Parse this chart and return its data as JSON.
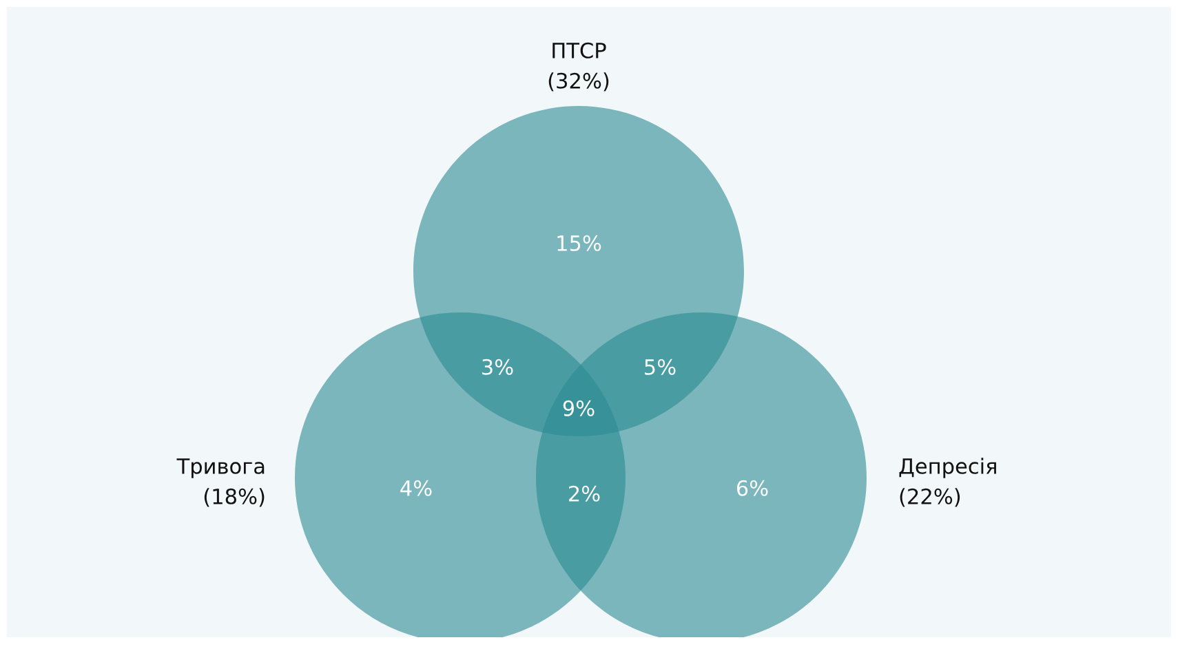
{
  "chart_data": {
    "type": "other",
    "categories": [
      "ПТСР",
      "Тривога",
      "Депресія"
    ],
    "values": [
      32,
      18,
      22
    ],
    "value_labels": [
      "(32%)",
      "(18%)",
      "(22%)"
    ],
    "color": "#2a8a93",
    "annotations": [
      "15%",
      "4%",
      "6%",
      "3%",
      "5%",
      "2%",
      "9%"
    ]
  }
}
